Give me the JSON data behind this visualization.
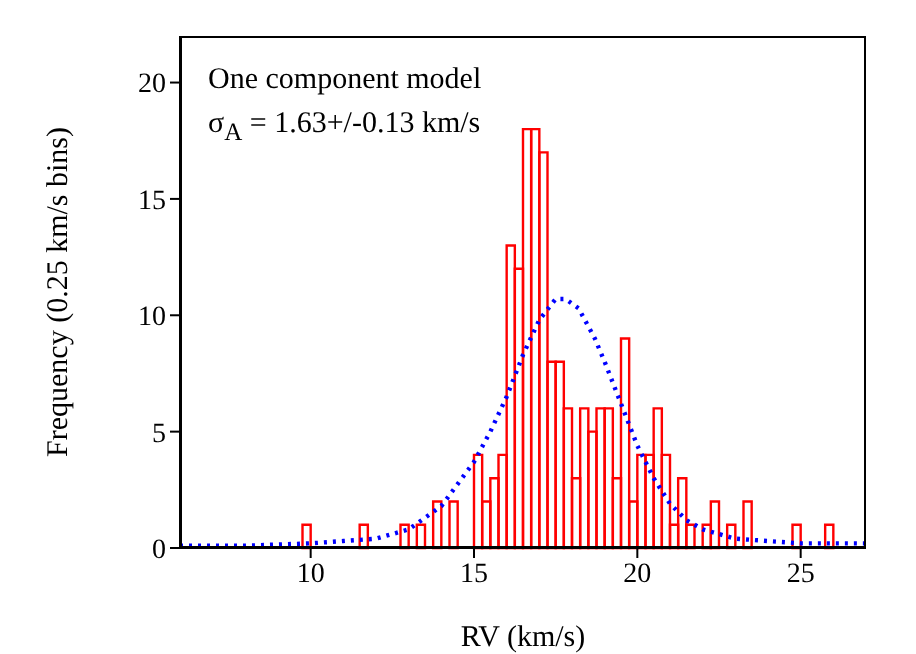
{
  "chart_data": {
    "type": "histogram",
    "xlabel": "RV (km/s)",
    "ylabel": "Frequency (0.25 km/s bins)",
    "annotations": [
      "One component model",
      "σ$_{A}$ = 1.63+/-0.13 km/s"
    ],
    "xlim": [
      6,
      27
    ],
    "xticks": [
      10,
      15,
      20,
      25
    ],
    "ylim": [
      0,
      22
    ],
    "yticks": [
      0,
      5,
      10,
      15,
      20
    ],
    "grid": false,
    "series": [
      {
        "color": "#ff0000",
        "bins": [
          9.75,
          10,
          10.25,
          10.5,
          10.75,
          11,
          11.25,
          11.5,
          11.75,
          12,
          12.25,
          12.5,
          12.75,
          13,
          13.25,
          13.5,
          13.75,
          14,
          14.25,
          14.5,
          14.75,
          15,
          15.25,
          15.5,
          15.75,
          16,
          16.25,
          16.5,
          16.75,
          17,
          17.25,
          17.5,
          17.75,
          18,
          18.25,
          18.5,
          18.75,
          19,
          19.25,
          19.5,
          19.75,
          20,
          20.25,
          20.5,
          20.75,
          21,
          21.25,
          21.5,
          21.75,
          22,
          22.25,
          22.5,
          22.75,
          23,
          23.25,
          23.5,
          23.75,
          24,
          24.25,
          24.5,
          24.75,
          25,
          25.25,
          25.5,
          25.75,
          26
        ],
        "values": [
          1,
          0,
          0,
          0,
          0,
          0,
          0,
          1,
          0,
          0,
          0,
          0,
          1,
          0,
          1,
          0,
          2,
          0,
          2,
          0,
          0,
          4,
          2,
          3,
          4,
          13,
          12,
          18,
          18,
          17,
          8,
          8,
          6,
          3,
          6,
          5,
          6,
          6,
          3,
          9,
          2,
          4,
          4,
          6,
          4,
          1,
          3,
          1,
          0,
          1,
          2,
          0,
          1,
          0,
          2,
          0,
          0,
          0,
          0,
          0,
          1,
          0,
          0,
          0,
          1
        ]
      },
      {
        "type": "line",
        "color": "#0000ff",
        "line_style": "dotted",
        "marker": "none",
        "x": [
          6,
          8,
          10,
          11,
          12,
          13,
          14,
          15,
          15.5,
          16,
          16.5,
          17,
          17.5,
          17.8,
          18.2,
          18.7,
          19,
          19.5,
          20,
          20.5,
          21,
          21.5,
          22,
          23,
          24,
          25,
          27
        ],
        "values": [
          0.1,
          0.1,
          0.2,
          0.3,
          0.4,
          0.8,
          1.8,
          3.7,
          5,
          6.5,
          8.3,
          9.8,
          10.7,
          10.7,
          10.3,
          9,
          8,
          6.2,
          4.4,
          3,
          1.9,
          1.2,
          0.8,
          0.4,
          0.3,
          0.2,
          0.2
        ]
      }
    ]
  }
}
